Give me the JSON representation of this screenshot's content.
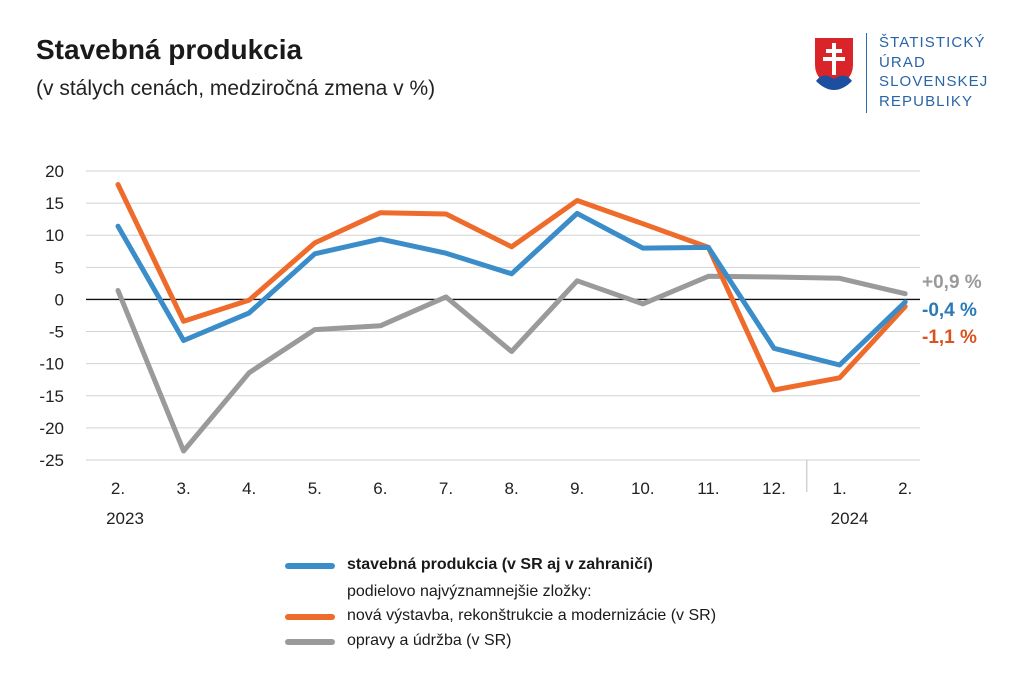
{
  "header": {
    "title": "Stavebná produkcia",
    "subtitle": "(v stálych cenách, medziročná zmena v %)"
  },
  "logo": {
    "lines": [
      "ŠTATISTICKÝ",
      "ÚRAD",
      "SLOVENSKEJ",
      "REPUBLIKY"
    ],
    "color": "#2a64a8"
  },
  "legend": {
    "main": "stavebná produkcia (v SR aj v zahraničí)",
    "sub_header": "podielovo najvýznamnejšie zložky:",
    "item1": "nová výstavba, rekonštrukcie a modernizácie (v SR)",
    "item2": "opravy a údržba (v SR)"
  },
  "chart_data": {
    "type": "line",
    "categories": [
      "2.",
      "3.",
      "4.",
      "5.",
      "6.",
      "7.",
      "8.",
      "9.",
      "10.",
      "11.",
      "12.",
      "1.",
      "2."
    ],
    "year_labels": [
      {
        "index": 0,
        "label": "2023"
      },
      {
        "index": 11,
        "label": "2024"
      }
    ],
    "ylim": [
      -25,
      20
    ],
    "yticks": [
      20,
      15,
      10,
      5,
      0,
      -5,
      -10,
      -15,
      -20,
      -25
    ],
    "grid": true,
    "series": [
      {
        "name": "stavebná produkcia (v SR aj v zahraničí)",
        "color": "#3a8dc8",
        "values": [
          11.4,
          -6.4,
          -2.1,
          7.1,
          9.4,
          7.2,
          4.0,
          13.4,
          8.0,
          8.1,
          -7.6,
          -10.2,
          -0.4
        ],
        "end_label": "-0,4 %"
      },
      {
        "name": "nová výstavba, rekonštrukcie a modernizácie (v SR)",
        "color": "#ee6b2b",
        "values": [
          17.9,
          -3.4,
          -0.1,
          8.8,
          13.5,
          13.3,
          8.2,
          15.4,
          11.8,
          8.1,
          -14.1,
          -12.2,
          -1.1
        ],
        "end_label": "-1,1 %"
      },
      {
        "name": "opravy a údržba (v SR)",
        "color": "#9a9a9a",
        "values": [
          1.4,
          -23.6,
          -11.4,
          -4.7,
          -4.1,
          0.4,
          -8.1,
          2.9,
          -0.7,
          3.6,
          3.5,
          3.3,
          0.9
        ],
        "end_label": "+0,9 %"
      }
    ],
    "end_label_colors": [
      "#9a9a9a",
      "#2a7ab8",
      "#d9531e"
    ]
  }
}
